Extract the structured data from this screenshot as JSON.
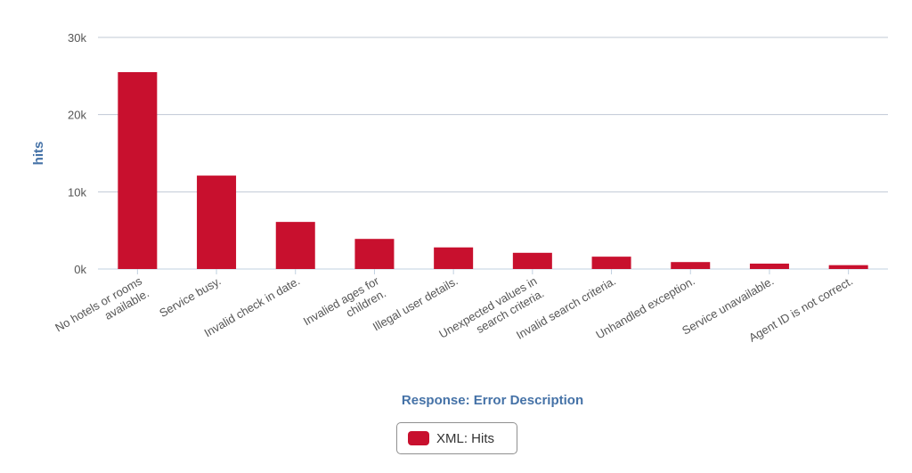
{
  "chart_data": {
    "type": "bar",
    "categories": [
      [
        "No hotels or rooms",
        "available."
      ],
      [
        "Service busy."
      ],
      [
        "Invalid check in date."
      ],
      [
        "Invalied ages for",
        "children."
      ],
      [
        "Illegal user details."
      ],
      [
        "Unexpected values in",
        "search criteria."
      ],
      [
        "Invalid search criteria."
      ],
      [
        "Unhandled exception."
      ],
      [
        "Service unavailable."
      ],
      [
        "Agent ID is not correct."
      ]
    ],
    "series": [
      {
        "name": "XML: Hits",
        "color": "#c8102e",
        "values": [
          25500,
          12100,
          6100,
          3900,
          2800,
          2100,
          1600,
          900,
          700,
          500
        ]
      }
    ],
    "xlabel": "Response: Error Description",
    "ylabel": "hits",
    "ylim": [
      0,
      30000
    ],
    "yticks": [
      0,
      10000,
      20000,
      30000
    ],
    "ytick_labels": [
      "0k",
      "10k",
      "20k",
      "30k"
    ],
    "grid": true,
    "legend_position": "bottom-center"
  }
}
